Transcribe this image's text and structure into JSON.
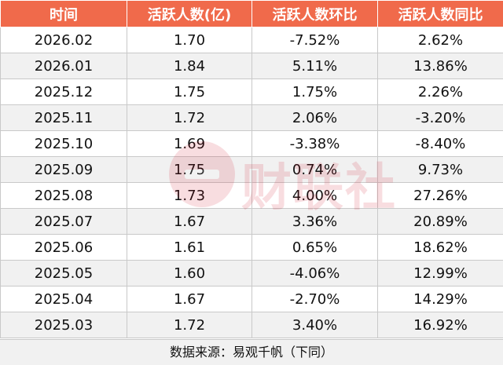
{
  "table": {
    "headers": [
      "时间",
      "活跃人数(亿)",
      "活跃人数环比",
      "活跃人数同比"
    ],
    "rows": [
      [
        "2026.02",
        "1.70",
        "-7.52%",
        "2.62%"
      ],
      [
        "2026.01",
        "1.84",
        "5.11%",
        "13.86%"
      ],
      [
        "2025.12",
        "1.75",
        "1.75%",
        "2.26%"
      ],
      [
        "2025.11",
        "1.72",
        "2.06%",
        "-3.20%"
      ],
      [
        "2025.10",
        "1.69",
        "-3.38%",
        "-8.40%"
      ],
      [
        "2025.09",
        "1.75",
        "0.74%",
        "9.73%"
      ],
      [
        "2025.08",
        "1.73",
        "4.00%",
        "27.26%"
      ],
      [
        "2025.07",
        "1.67",
        "3.36%",
        "20.89%"
      ],
      [
        "2025.06",
        "1.61",
        "0.65%",
        "18.62%"
      ],
      [
        "2025.05",
        "1.60",
        "-4.06%",
        "12.99%"
      ],
      [
        "2025.04",
        "1.67",
        "-2.70%",
        "14.29%"
      ],
      [
        "2025.03",
        "1.72",
        "3.40%",
        "16.92%"
      ]
    ]
  },
  "source_note": "数据来源：易观千帆（下同）",
  "watermark": {
    "text": "财联社",
    "icon": "e-logo-icon"
  },
  "colors": {
    "header_bg": "#f06a4b",
    "header_text": "#ffffff",
    "zebra": "#f1f1f1",
    "border": "#c9c9c9"
  }
}
